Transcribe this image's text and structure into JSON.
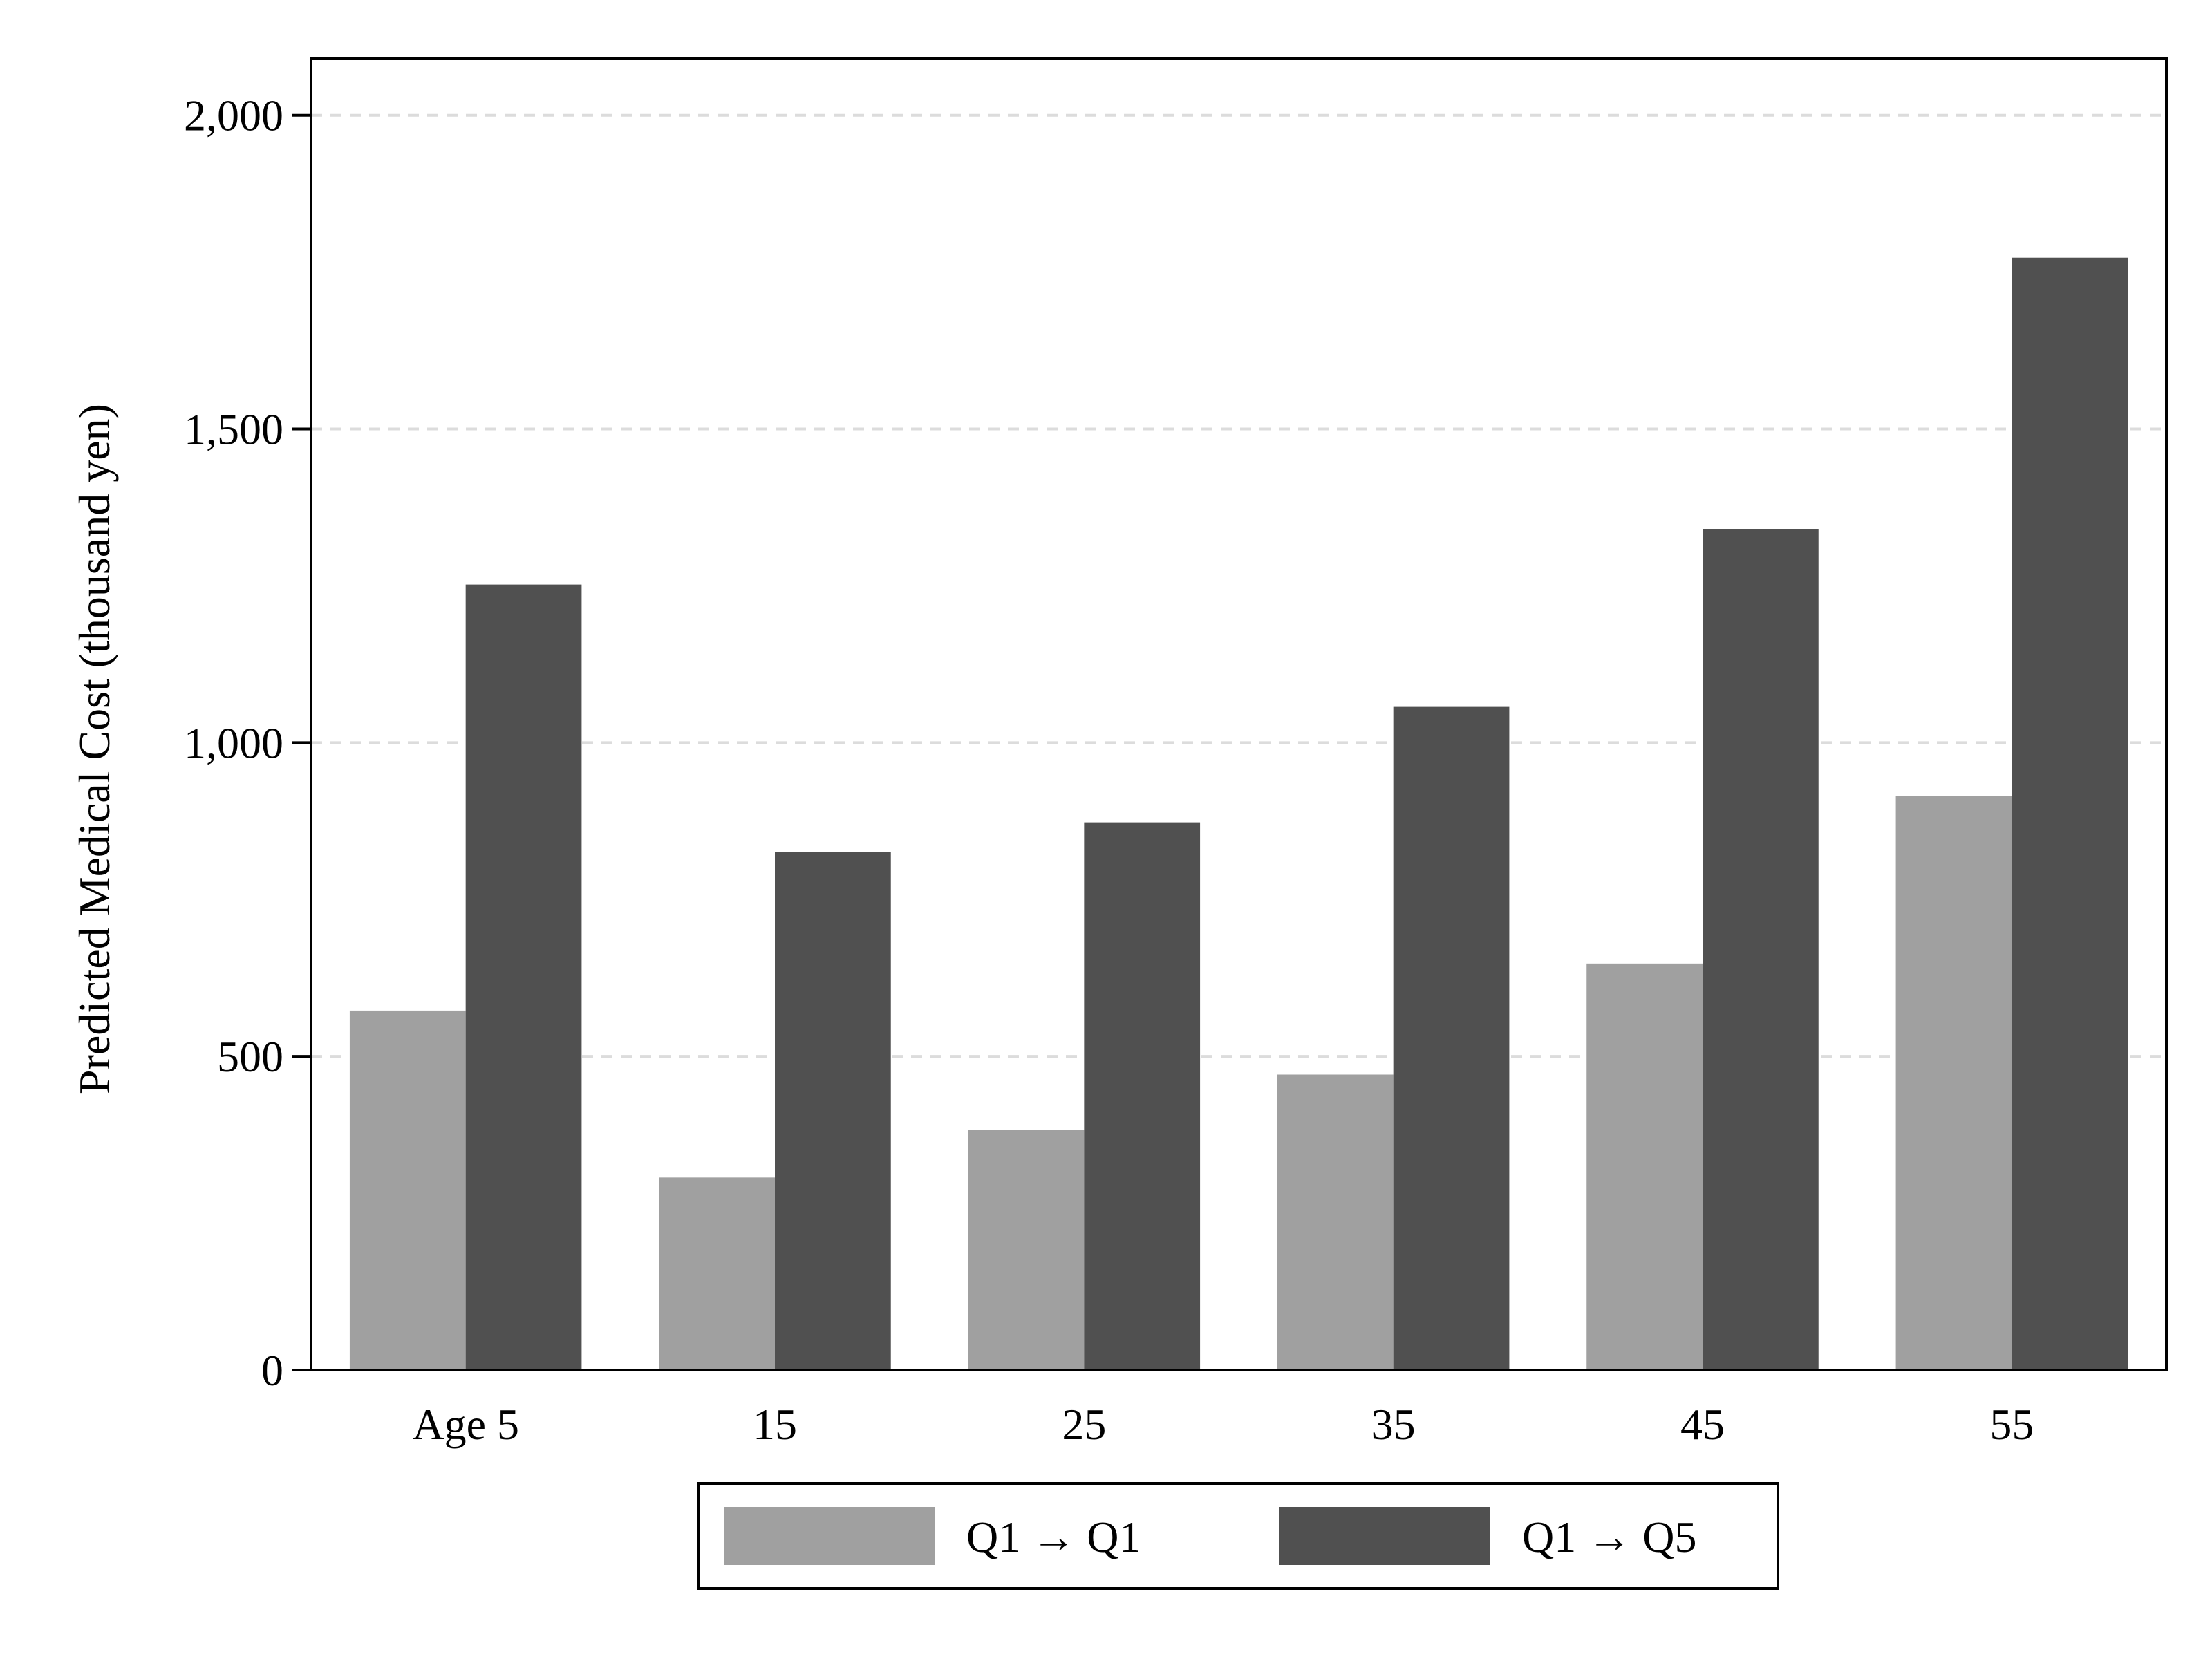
{
  "chart_data": {
    "type": "bar",
    "title": "",
    "xlabel": "",
    "ylabel": "Predicted Medical Cost (thousand yen)",
    "categories": [
      "Age 5",
      "15",
      "25",
      "35",
      "45",
      "55"
    ],
    "series": [
      {
        "name": "Q1 → Q1",
        "color": "#a0a0a0",
        "values": [
          573,
          307,
          383,
          471,
          648,
          915
        ]
      },
      {
        "name": "Q1 → Q5",
        "color": "#505050",
        "values": [
          1252,
          826,
          873,
          1057,
          1340,
          1773
        ]
      }
    ],
    "ylim": [
      0,
      2090
    ],
    "yticks": [
      0,
      500,
      1000,
      1500,
      2000
    ],
    "ytick_labels": [
      "0",
      "500",
      "1,000",
      "1,500",
      "2,000"
    ],
    "grid": "horizontal dashed",
    "legend_position": "bottom"
  }
}
